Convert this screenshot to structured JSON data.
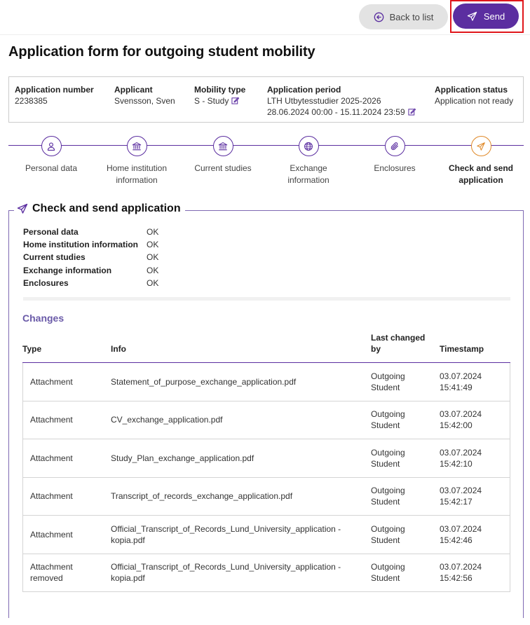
{
  "toolbar": {
    "back_label": "Back to list",
    "send_label": "Send"
  },
  "page": {
    "title": "Application form for outgoing student mobility"
  },
  "info": {
    "application_number": {
      "label": "Application number",
      "value": "2238385"
    },
    "applicant": {
      "label": "Applicant",
      "value": "Svensson, Sven"
    },
    "mobility_type": {
      "label": "Mobility type",
      "value": "S - Study"
    },
    "application_period": {
      "label": "Application period",
      "value": "LTH Utbytesstudier 2025-2026",
      "dates": "28.06.2024 00:00 - 15.11.2024 23:59"
    },
    "application_status": {
      "label": "Application status",
      "value": "Application not ready"
    }
  },
  "steps": [
    {
      "label_line1": "Personal data",
      "label_line2": "",
      "icon": "person-icon"
    },
    {
      "label_line1": "Home institution",
      "label_line2": "information",
      "icon": "institution-icon"
    },
    {
      "label_line1": "Current studies",
      "label_line2": "",
      "icon": "institution-icon"
    },
    {
      "label_line1": "Exchange",
      "label_line2": "information",
      "icon": "globe-icon"
    },
    {
      "label_line1": "Enclosures",
      "label_line2": "",
      "icon": "paperclip-icon"
    },
    {
      "label_line1": "Check and send",
      "label_line2": "application",
      "icon": "send-icon",
      "active": true
    }
  ],
  "check": {
    "title": "Check and send application",
    "items": [
      {
        "label": "Personal data",
        "status": "OK"
      },
      {
        "label": "Home institution information",
        "status": "OK"
      },
      {
        "label": "Current studies",
        "status": "OK"
      },
      {
        "label": "Exchange information",
        "status": "OK"
      },
      {
        "label": "Enclosures",
        "status": "OK"
      }
    ]
  },
  "changes": {
    "title": "Changes",
    "headers": {
      "type": "Type",
      "info": "Info",
      "last_changed_by_line1": "Last changed",
      "last_changed_by_line2": "by",
      "timestamp": "Timestamp"
    },
    "rows": [
      {
        "type1": "Attachment",
        "type2": "",
        "info1": "Statement_of_purpose_exchange_application.pdf",
        "info2": "",
        "by1": "Outgoing",
        "by2": "Student",
        "date": "03.07.2024",
        "time": "15:41:49"
      },
      {
        "type1": "Attachment",
        "type2": "",
        "info1": "CV_exchange_application.pdf",
        "info2": "",
        "by1": "Outgoing",
        "by2": "Student",
        "date": "03.07.2024",
        "time": "15:42:00"
      },
      {
        "type1": "Attachment",
        "type2": "",
        "info1": "Study_Plan_exchange_application.pdf",
        "info2": "",
        "by1": "Outgoing",
        "by2": "Student",
        "date": "03.07.2024",
        "time": "15:42:10"
      },
      {
        "type1": "Attachment",
        "type2": "",
        "info1": "Transcript_of_records_exchange_application.pdf",
        "info2": "",
        "by1": "Outgoing",
        "by2": "Student",
        "date": "03.07.2024",
        "time": "15:42:17"
      },
      {
        "type1": "Attachment",
        "type2": "",
        "info1": "Official_Transcript_of_Records_Lund_University_application -",
        "info2": "kopia.pdf",
        "by1": "Outgoing",
        "by2": "Student",
        "date": "03.07.2024",
        "time": "15:42:46"
      },
      {
        "type1": "Attachment",
        "type2": "removed",
        "info1": "Official_Transcript_of_Records_Lund_University_application -",
        "info2": "kopia.pdf",
        "by1": "Outgoing",
        "by2": "Student",
        "date": "03.07.2024",
        "time": "15:42:56"
      }
    ]
  },
  "colors": {
    "brand_purple": "#5b2ea0",
    "active_step_orange": "#e08a2a",
    "highlight_red": "#e0161b"
  }
}
